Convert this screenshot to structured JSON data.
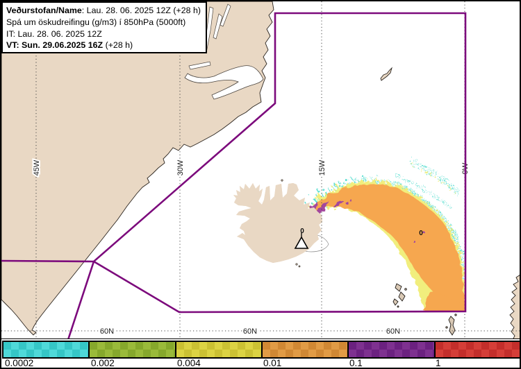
{
  "title_box": {
    "line1_bold": "Veðurstofan/Name",
    "line1_rest": ": Lau. 28. 06. 2025 12Z (+28 h)",
    "line2": "Spá um öskudreifingu (g/m3) í 850hPa (5000ft)",
    "line3": "IT: Lau. 28. 06. 2025 12Z",
    "line4_bold": "VT: Sun. 29.06.2025 16Z",
    "line4_rest": " (+28 h)"
  },
  "map": {
    "meridians": [
      {
        "label": "45W"
      },
      {
        "label": "30W"
      },
      {
        "label": "15W"
      },
      {
        "label": "0W"
      }
    ],
    "parallels": [
      {
        "label": "60N"
      },
      {
        "label": "60N"
      },
      {
        "label": "60N"
      }
    ],
    "zero_labels": [
      "0",
      "0"
    ],
    "colors": {
      "land": "#e9d8c4",
      "ocean": "#ffffff",
      "ash_low_cyan": "#5fdfd2",
      "ash_mid_yellow": "#f1ee7d",
      "ash_main_orange": "#f6a74f",
      "ash_high_purple": "#a2479d",
      "boundary_purple": "#7c0a7c"
    }
  },
  "legend": {
    "segments": [
      {
        "value": "0.0002",
        "light": "#4fd9d9",
        "dark": "#35c6c6"
      },
      {
        "value": "0.002",
        "light": "#9aba3a",
        "dark": "#86a82c"
      },
      {
        "value": "0.004",
        "light": "#dcd343",
        "dark": "#cbc133"
      },
      {
        "value": "0.01",
        "light": "#e19b45",
        "dark": "#d08834"
      },
      {
        "value": "0.1",
        "light": "#7e3190",
        "dark": "#6b2180"
      },
      {
        "value": "1",
        "light": "#d53e38",
        "dark": "#c32e2b"
      }
    ]
  }
}
